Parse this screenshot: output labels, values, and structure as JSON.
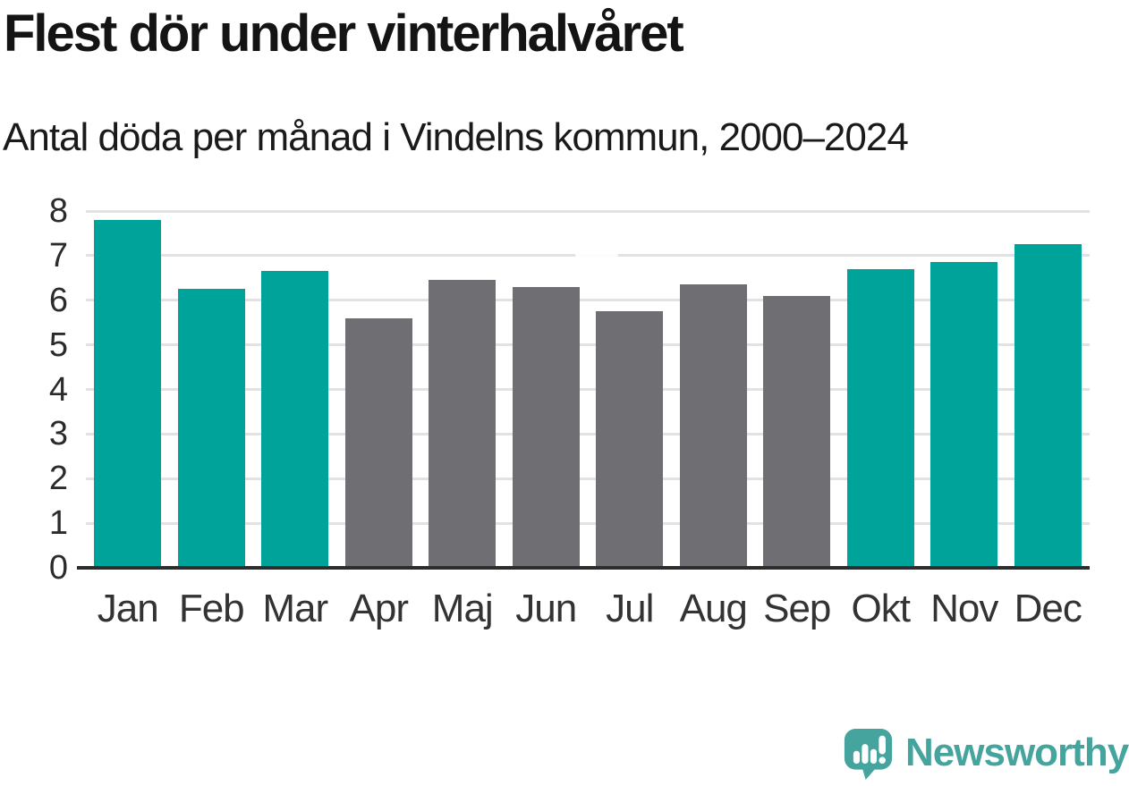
{
  "header": {
    "title": "Flest dör under vinterhalvåret",
    "subtitle": "Antal döda per månad i Vindelns kommun, 2000–2024"
  },
  "chart_data": {
    "type": "bar",
    "title": "Flest dör under vinterhalvåret",
    "subtitle": "Antal döda per månad i Vindelns kommun, 2000–2024",
    "categories": [
      "Jan",
      "Feb",
      "Mar",
      "Apr",
      "Maj",
      "Jun",
      "Jul",
      "Aug",
      "Sep",
      "Okt",
      "Nov",
      "Dec"
    ],
    "values": [
      7.8,
      6.25,
      6.65,
      5.6,
      6.45,
      6.3,
      5.75,
      6.35,
      6.1,
      6.7,
      6.85,
      7.25
    ],
    "highlighted_categories": [
      "Jan",
      "Feb",
      "Mar",
      "Okt",
      "Nov",
      "Dec"
    ],
    "highlight_color": "#00a39a",
    "base_color": "#6e6e73",
    "ylim": [
      0,
      8
    ],
    "yticks": [
      0,
      1,
      2,
      3,
      4,
      5,
      6,
      7,
      8
    ],
    "grid": true,
    "gridline_color": "#e2e2e2",
    "axis_color": "#2d2d2d",
    "legend": "none",
    "xlabel": "",
    "ylabel": ""
  },
  "footer": {
    "brand_name": "Newsworthy",
    "brand_color": "#45a49e",
    "logo_icon": "newsworthy-speech-bubble-bar-chart-icon"
  }
}
